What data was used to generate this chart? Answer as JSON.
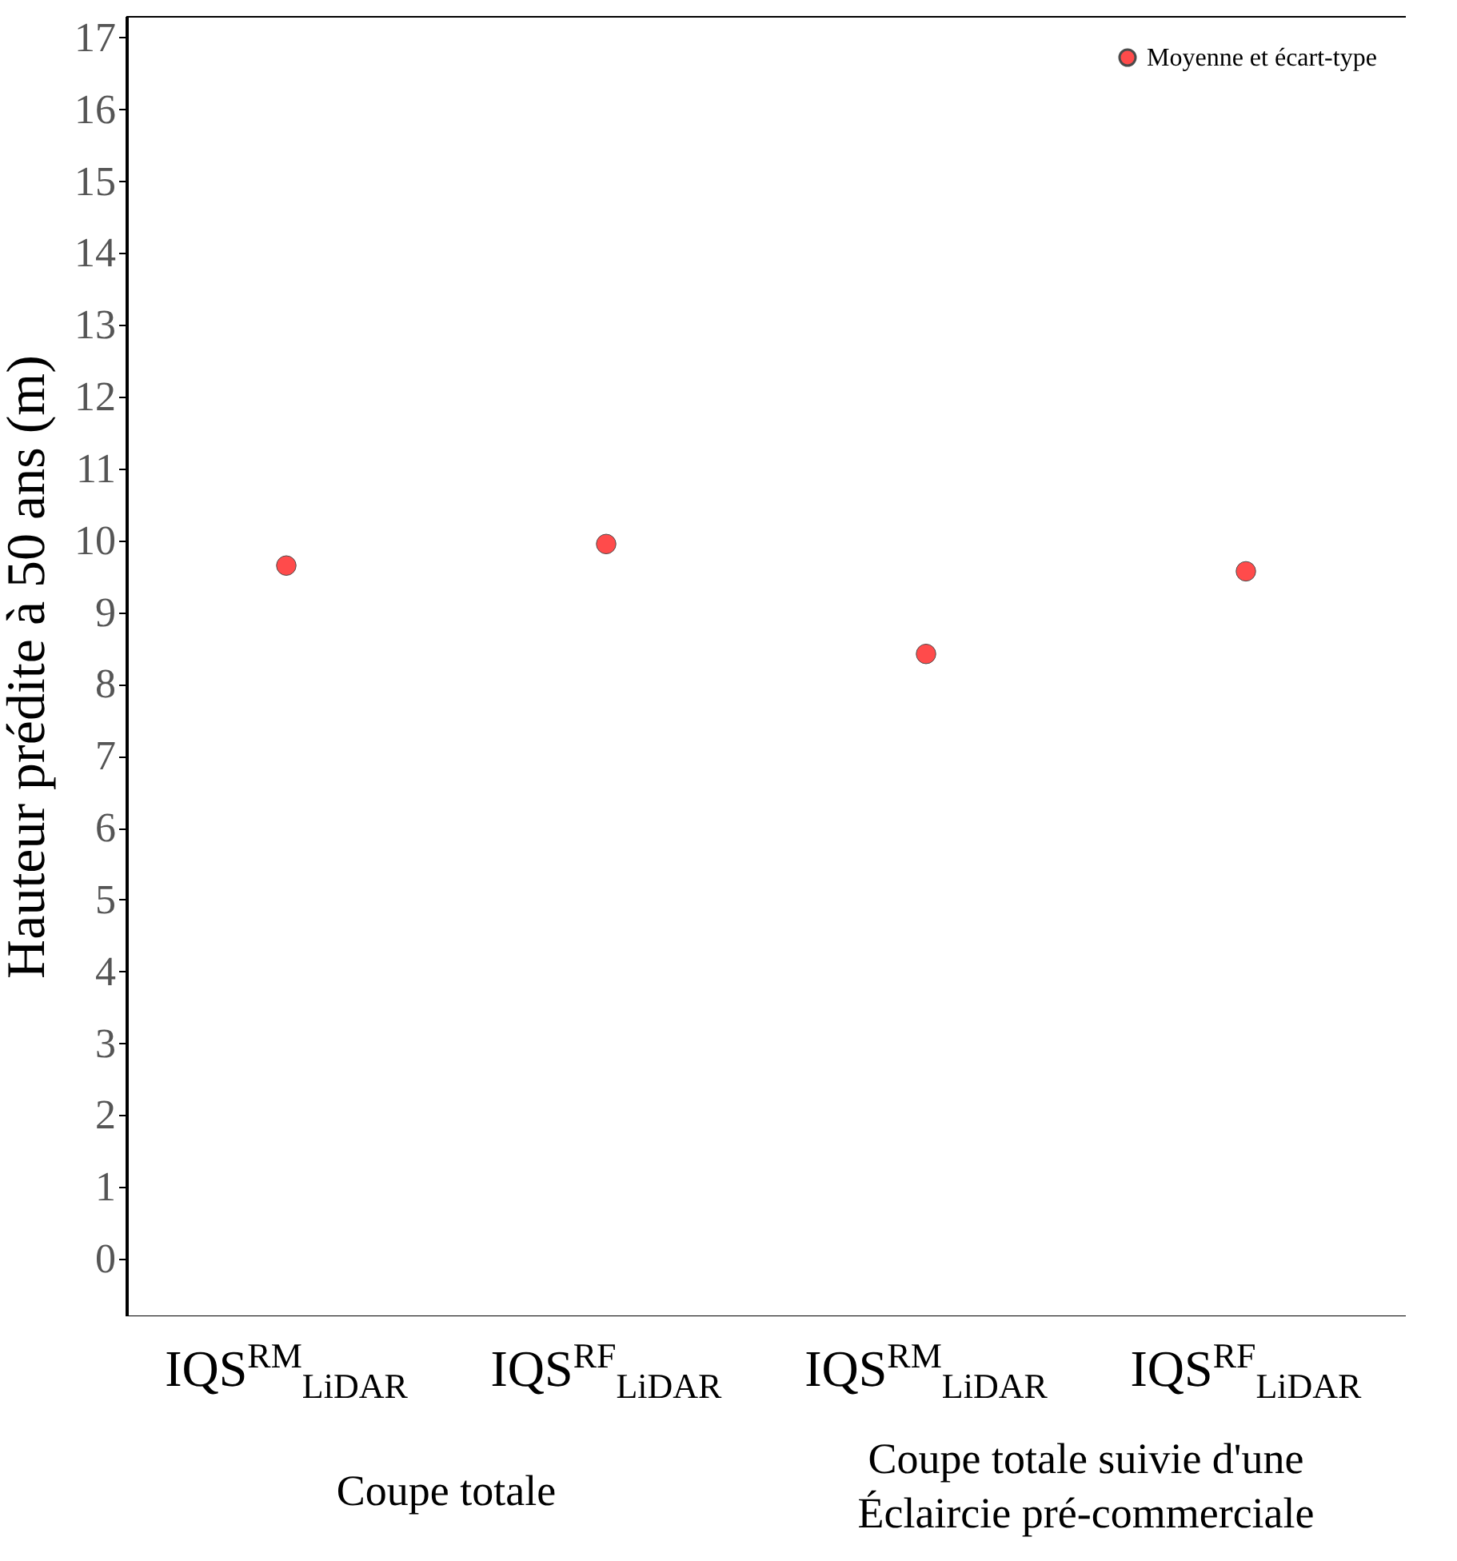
{
  "chart_data": {
    "type": "scatter",
    "ylabel": "Hauteur prédite à 50 ans (m)",
    "categories": [
      "IQS$^{RM}$$_{LiDAR}$",
      "IQS$^{RF}$$_{LiDAR}$",
      "IQS$^{RM}$$_{LiDAR}$",
      "IQS$^{RF}$$_{LiDAR}$"
    ],
    "series": [
      {
        "name": "Moyenne et écart-type",
        "color": "#ff0000",
        "values": [
          9.65,
          9.95,
          8.42,
          9.57
        ]
      }
    ],
    "ylim": [
      -0.8,
      17.3
    ],
    "yticks": [
      0,
      1,
      2,
      3,
      4,
      5,
      6,
      7,
      8,
      9,
      10,
      11,
      12,
      13,
      14,
      15,
      16,
      17
    ],
    "grid": false,
    "legend": "top right",
    "annotations": [
      "Coupe totale",
      "Coupe totale suivie d'une Éclaircie pré-commerciale"
    ]
  }
}
